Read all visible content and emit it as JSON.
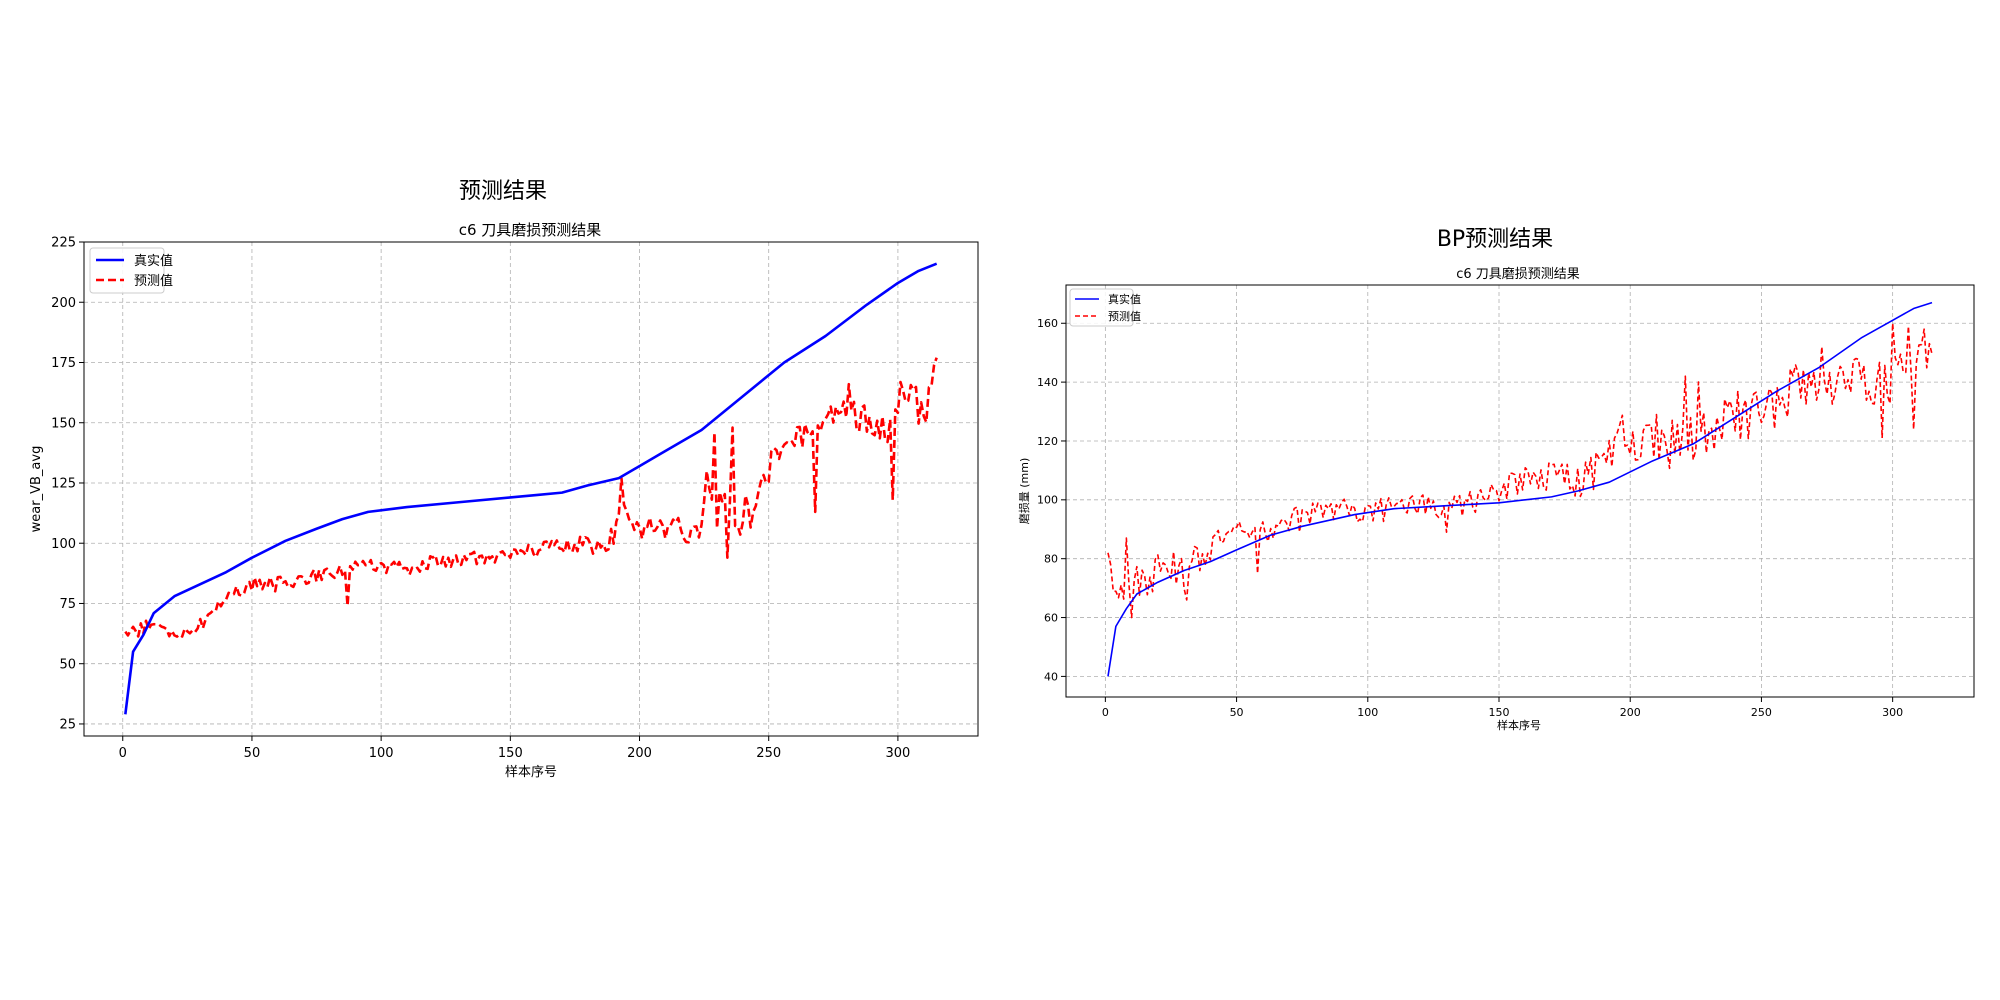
{
  "chart_data": [
    {
      "type": "line",
      "suptitle": "预测结果",
      "title": "c6 刀具磨损预测结果",
      "xlabel": "样本序号",
      "ylabel": "wear_VB_avg",
      "xlim": [
        -15,
        331
      ],
      "ylim": [
        20,
        225
      ],
      "xticks": [
        0,
        50,
        100,
        150,
        200,
        250,
        300
      ],
      "yticks": [
        25,
        50,
        75,
        100,
        125,
        150,
        175,
        200,
        225
      ],
      "grid": true,
      "legend_position": "top-left",
      "series": [
        {
          "name": "真实值",
          "color": "#0000ff",
          "style": "solid",
          "points": [
            [
              1,
              29
            ],
            [
              4,
              55
            ],
            [
              8,
              62
            ],
            [
              12,
              71
            ],
            [
              20,
              78
            ],
            [
              30,
              83
            ],
            [
              40,
              88
            ],
            [
              50,
              94
            ],
            [
              63,
              101
            ],
            [
              75,
              106
            ],
            [
              85,
              110
            ],
            [
              95,
              113
            ],
            [
              110,
              115
            ],
            [
              130,
              117
            ],
            [
              150,
              119
            ],
            [
              160,
              120
            ],
            [
              170,
              121
            ],
            [
              180,
              124
            ],
            [
              192,
              127
            ],
            [
              208,
              137
            ],
            [
              224,
              147
            ],
            [
              240,
              161
            ],
            [
              256,
              175
            ],
            [
              272,
              186
            ],
            [
              288,
              199
            ],
            [
              300,
              208
            ],
            [
              308,
              213
            ],
            [
              315,
              216
            ]
          ]
        },
        {
          "name": "预测值",
          "color": "#ff0000",
          "style": "dashed",
          "n": 315,
          "x0": 1,
          "anchors": [
            [
              1,
              62
            ],
            [
              10,
              66
            ],
            [
              20,
              62
            ],
            [
              30,
              66
            ],
            [
              40,
              78
            ],
            [
              50,
              83
            ],
            [
              60,
              83
            ],
            [
              70,
              85
            ],
            [
              80,
              88
            ],
            [
              90,
              91
            ],
            [
              100,
              90
            ],
            [
              110,
              89
            ],
            [
              120,
              92
            ],
            [
              130,
              93
            ],
            [
              140,
              94
            ],
            [
              150,
              95
            ],
            [
              160,
              97
            ],
            [
              170,
              99
            ],
            [
              180,
              100
            ],
            [
              185,
              97
            ],
            [
              190,
              104
            ],
            [
              193,
              118
            ],
            [
              196,
              106
            ],
            [
              205,
              106
            ],
            [
              215,
              106
            ],
            [
              222,
              104
            ],
            [
              226,
              118
            ],
            [
              230,
              116
            ],
            [
              236,
              112
            ],
            [
              242,
              113
            ],
            [
              248,
              128
            ],
            [
              255,
              140
            ],
            [
              262,
              146
            ],
            [
              268,
              142
            ],
            [
              272,
              150
            ],
            [
              280,
              155
            ],
            [
              290,
              150
            ],
            [
              296,
              145
            ],
            [
              300,
              160
            ],
            [
              305,
              161
            ],
            [
              310,
              155
            ],
            [
              315,
              170
            ]
          ],
          "noise": [
            [
              1,
              3
            ],
            [
              40,
              3
            ],
            [
              80,
              3
            ],
            [
              180,
              3
            ],
            [
              190,
              5
            ],
            [
              222,
              5
            ],
            [
              226,
              10
            ],
            [
              242,
              10
            ],
            [
              246,
              6
            ],
            [
              296,
              6
            ],
            [
              298,
              9
            ],
            [
              315,
              8
            ]
          ],
          "spikes": [
            [
              87,
              74
            ],
            [
              193,
              127
            ],
            [
              226,
              130
            ],
            [
              229,
              146
            ],
            [
              234,
              94
            ],
            [
              236,
              148
            ],
            [
              268,
              113
            ],
            [
              281,
              166
            ],
            [
              298,
              118
            ],
            [
              315,
              177
            ]
          ]
        }
      ]
    },
    {
      "type": "line",
      "suptitle": "BP预测结果",
      "title": "c6 刀具磨损预测结果",
      "xlabel": "样本序号",
      "ylabel": "磨损量 (mm)",
      "xlim": [
        -15,
        331
      ],
      "ylim": [
        33,
        173
      ],
      "xticks": [
        0,
        50,
        100,
        150,
        200,
        250,
        300
      ],
      "yticks": [
        40,
        60,
        80,
        100,
        120,
        140,
        160
      ],
      "grid": true,
      "legend_position": "top-left",
      "series": [
        {
          "name": "真实值",
          "color": "#0000ff",
          "style": "solid",
          "points": [
            [
              1,
              40
            ],
            [
              4,
              57
            ],
            [
              8,
              63
            ],
            [
              12,
              68
            ],
            [
              20,
              72
            ],
            [
              30,
              76
            ],
            [
              40,
              79
            ],
            [
              50,
              83
            ],
            [
              63,
              88
            ],
            [
              75,
              91
            ],
            [
              85,
              93
            ],
            [
              95,
              95
            ],
            [
              110,
              97
            ],
            [
              130,
              98
            ],
            [
              150,
              99
            ],
            [
              160,
              100
            ],
            [
              170,
              101
            ],
            [
              180,
              103
            ],
            [
              192,
              106
            ],
            [
              208,
              113
            ],
            [
              224,
              119
            ],
            [
              240,
              128
            ],
            [
              256,
              137
            ],
            [
              272,
              145
            ],
            [
              288,
              155
            ],
            [
              300,
              161
            ],
            [
              308,
              165
            ],
            [
              315,
              167
            ]
          ]
        },
        {
          "name": "预测值",
          "color": "#ff0000",
          "style": "dashed",
          "n": 315,
          "x0": 1,
          "anchors": [
            [
              1,
              75
            ],
            [
              10,
              70
            ],
            [
              20,
              75
            ],
            [
              30,
              76
            ],
            [
              40,
              84
            ],
            [
              50,
              88
            ],
            [
              60,
              88
            ],
            [
              70,
              92
            ],
            [
              80,
              96
            ],
            [
              90,
              97
            ],
            [
              100,
              96
            ],
            [
              110,
              97
            ],
            [
              120,
              98
            ],
            [
              130,
              97
            ],
            [
              140,
              99
            ],
            [
              150,
              102
            ],
            [
              160,
              107
            ],
            [
              170,
              108
            ],
            [
              180,
              106
            ],
            [
              190,
              112
            ],
            [
              196,
              120
            ],
            [
              205,
              122
            ],
            [
              215,
              118
            ],
            [
              222,
              122
            ],
            [
              230,
              122
            ],
            [
              240,
              128
            ],
            [
              250,
              130
            ],
            [
              260,
              136
            ],
            [
              270,
              140
            ],
            [
              280,
              142
            ],
            [
              290,
              138
            ],
            [
              300,
              142
            ],
            [
              305,
              145
            ],
            [
              310,
              146
            ],
            [
              315,
              147
            ]
          ],
          "noise": [
            [
              1,
              7
            ],
            [
              30,
              7
            ],
            [
              40,
              5
            ],
            [
              130,
              4
            ],
            [
              150,
              5
            ],
            [
              185,
              6
            ],
            [
              195,
              9
            ],
            [
              315,
              9
            ]
          ],
          "spikes": [
            [
              1,
              82
            ],
            [
              3,
              69
            ],
            [
              8,
              87
            ],
            [
              10,
              60
            ],
            [
              31,
              66
            ],
            [
              58,
              75
            ],
            [
              130,
              89
            ],
            [
              221,
              142
            ],
            [
              226,
              140
            ],
            [
              273,
              152
            ],
            [
              296,
              121
            ],
            [
              300,
              160
            ],
            [
              306,
              159
            ],
            [
              308,
              124
            ],
            [
              312,
              158
            ]
          ]
        }
      ]
    }
  ]
}
